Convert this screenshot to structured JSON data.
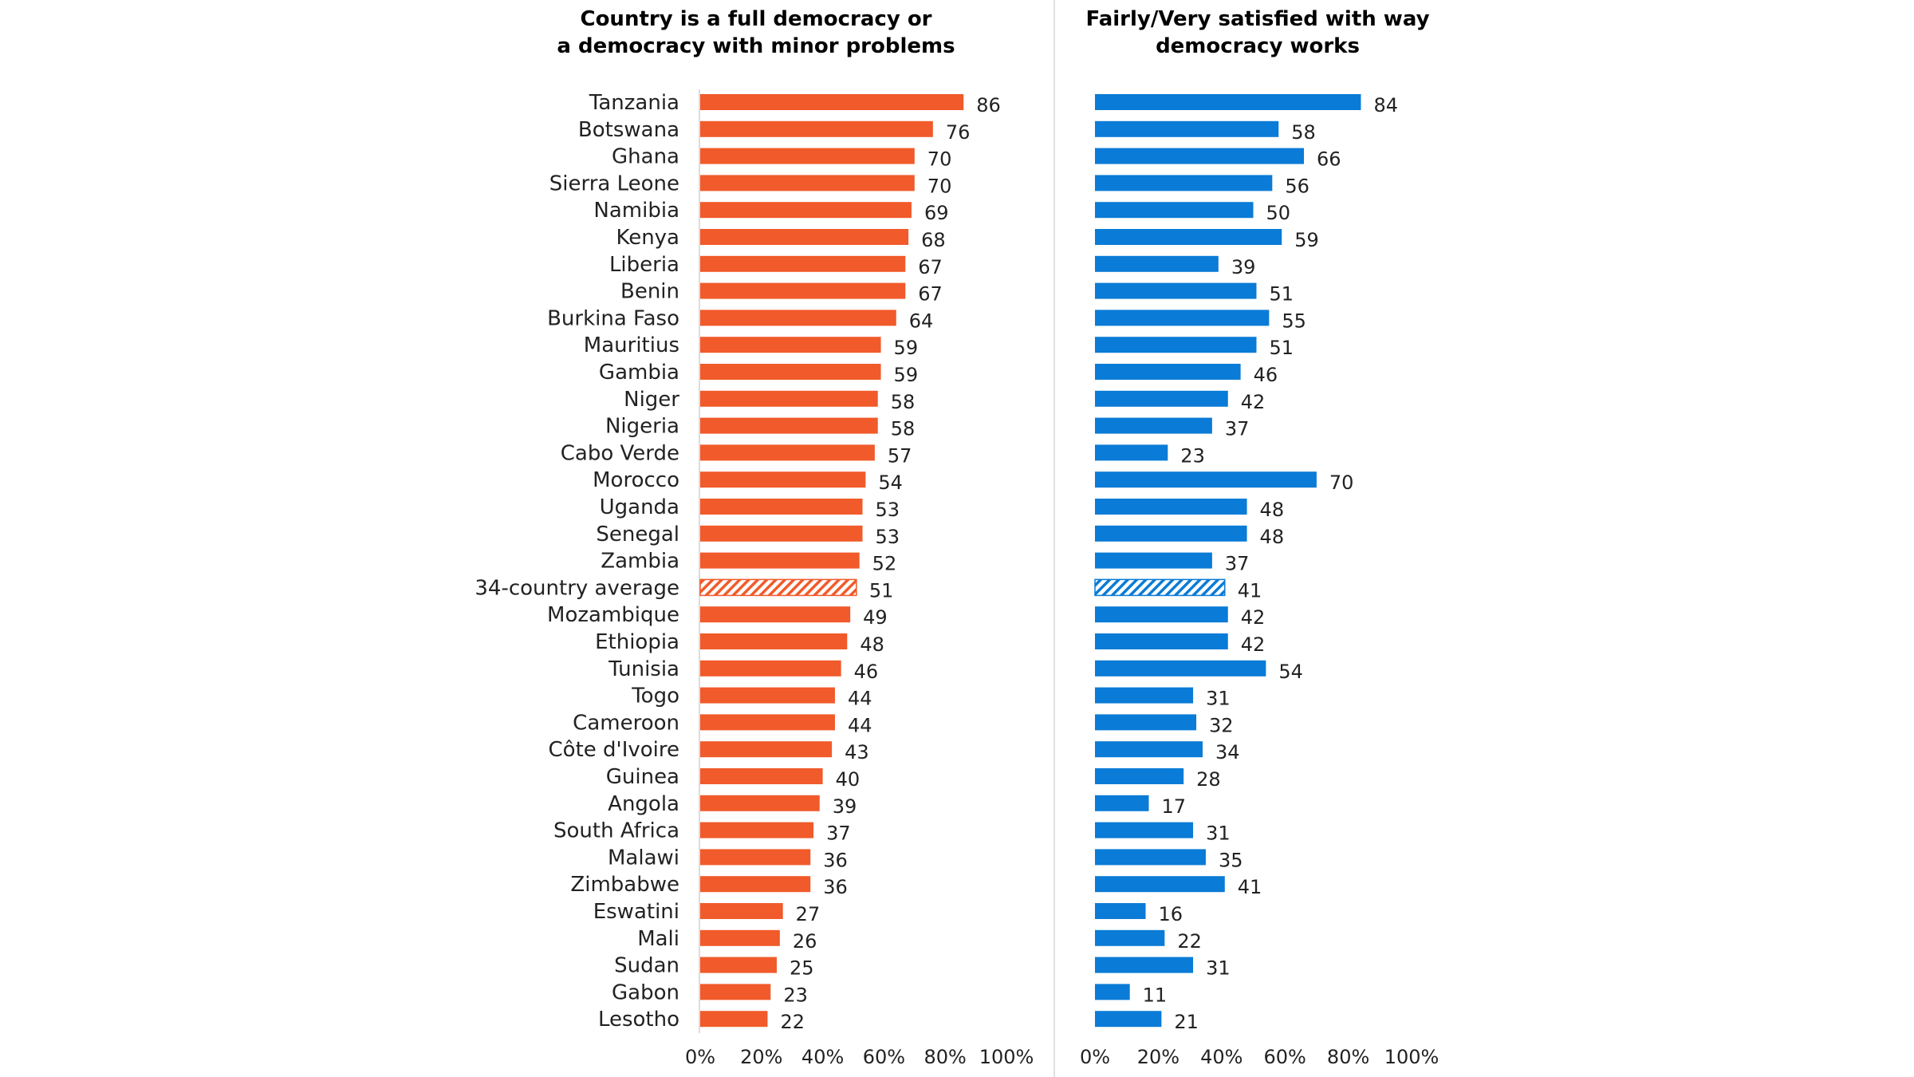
{
  "chart_data": [
    {
      "type": "bar",
      "orientation": "horizontal",
      "title_lines": [
        "Country is a full democracy or",
        "a democracy with minor problems"
      ],
      "color": "#F15A2A",
      "highlight_pattern": "hatched",
      "highlight_category": "34-country average",
      "xlim": [
        0,
        100
      ],
      "x_ticks": [
        "0%",
        "20%",
        "40%",
        "60%",
        "80%",
        "100%"
      ],
      "grid": false,
      "categories": [
        "Tanzania",
        "Botswana",
        "Ghana",
        "Sierra Leone",
        "Namibia",
        "Kenya",
        "Liberia",
        "Benin",
        "Burkina Faso",
        "Mauritius",
        "Gambia",
        "Niger",
        "Nigeria",
        "Cabo Verde",
        "Morocco",
        "Uganda",
        "Senegal",
        "Zambia",
        "34-country average",
        "Mozambique",
        "Ethiopia",
        "Tunisia",
        "Togo",
        "Cameroon",
        "Côte d'Ivoire",
        "Guinea",
        "Angola",
        "South Africa",
        "Malawi",
        "Zimbabwe",
        "Eswatini",
        "Mali",
        "Sudan",
        "Gabon",
        "Lesotho"
      ],
      "values": [
        86,
        76,
        70,
        70,
        69,
        68,
        67,
        67,
        64,
        59,
        59,
        58,
        58,
        57,
        54,
        53,
        53,
        52,
        51,
        49,
        48,
        46,
        44,
        44,
        43,
        40,
        39,
        37,
        36,
        36,
        27,
        26,
        25,
        23,
        22
      ]
    },
    {
      "type": "bar",
      "orientation": "horizontal",
      "title_lines": [
        "Fairly/Very satisfied with way",
        "democracy works"
      ],
      "color": "#0A7BD6",
      "highlight_pattern": "hatched",
      "highlight_category": "34-country average",
      "xlim": [
        0,
        100
      ],
      "x_ticks": [
        "0%",
        "20%",
        "40%",
        "60%",
        "80%",
        "100%"
      ],
      "grid": false,
      "categories": [
        "Tanzania",
        "Botswana",
        "Ghana",
        "Sierra Leone",
        "Namibia",
        "Kenya",
        "Liberia",
        "Benin",
        "Burkina Faso",
        "Mauritius",
        "Gambia",
        "Niger",
        "Nigeria",
        "Cabo Verde",
        "Morocco",
        "Uganda",
        "Senegal",
        "Zambia",
        "34-country average",
        "Mozambique",
        "Ethiopia",
        "Tunisia",
        "Togo",
        "Cameroon",
        "Côte d'Ivoire",
        "Guinea",
        "Angola",
        "South Africa",
        "Malawi",
        "Zimbabwe",
        "Eswatini",
        "Mali",
        "Sudan",
        "Gabon",
        "Lesotho"
      ],
      "values": [
        84,
        58,
        66,
        56,
        50,
        59,
        39,
        51,
        55,
        51,
        46,
        42,
        37,
        23,
        70,
        48,
        48,
        37,
        41,
        42,
        42,
        54,
        31,
        32,
        34,
        28,
        17,
        31,
        35,
        41,
        16,
        22,
        31,
        11,
        21
      ]
    }
  ]
}
